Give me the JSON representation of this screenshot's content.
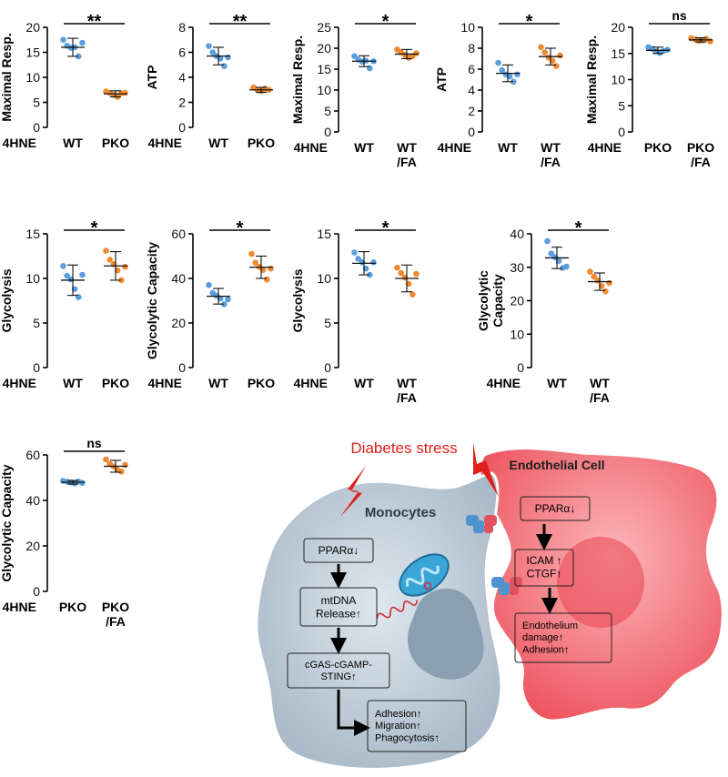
{
  "chart_data": [
    {
      "type": "scatter",
      "ylabel": "Maximal Resp.",
      "row_label": "4HNE",
      "categories": [
        "WT",
        "PKO"
      ],
      "ylim": [
        0,
        20
      ],
      "yticks": [
        0,
        5,
        10,
        15,
        20
      ],
      "significance": "**",
      "series": [
        {
          "color": "#5a9fdc",
          "mean": 16.0,
          "sd": 1.8,
          "values": [
            17.5,
            16.3,
            15.9,
            16.0,
            14.2,
            16.9
          ]
        },
        {
          "color": "#ee8a32",
          "mean": 6.7,
          "sd": 0.6,
          "values": [
            7.2,
            6.9,
            6.5,
            6.1,
            6.8,
            6.9
          ]
        }
      ]
    },
    {
      "type": "scatter",
      "ylabel": "ATP",
      "row_label": "4HNE",
      "categories": [
        "WT",
        "PKO"
      ],
      "ylim": [
        0,
        8
      ],
      "yticks": [
        0,
        2,
        4,
        6,
        8
      ],
      "significance": "**",
      "series": [
        {
          "color": "#5a9fdc",
          "mean": 5.7,
          "sd": 0.7,
          "values": [
            6.5,
            6.0,
            5.7,
            5.5,
            4.9,
            5.6
          ]
        },
        {
          "color": "#ee8a32",
          "mean": 3.0,
          "sd": 0.2,
          "values": [
            3.2,
            3.0,
            2.9,
            3.1,
            3.0
          ]
        }
      ]
    },
    {
      "type": "scatter",
      "ylabel": "Maximal Resp.",
      "row_label": "4HNE",
      "categories": [
        "WT",
        "WT\n/FA"
      ],
      "ylim": [
        0,
        25
      ],
      "yticks": [
        0,
        5,
        10,
        15,
        20,
        25
      ],
      "significance": "*",
      "series": [
        {
          "color": "#5a9fdc",
          "mean": 16.9,
          "sd": 1.3,
          "values": [
            18.1,
            17.3,
            16.8,
            17.0,
            15.2,
            16.9
          ]
        },
        {
          "color": "#ee8a32",
          "mean": 18.6,
          "sd": 1.1,
          "values": [
            19.7,
            19.0,
            18.4,
            17.7,
            18.1,
            18.8
          ]
        }
      ]
    },
    {
      "type": "scatter",
      "ylabel": "ATP",
      "row_label": "4HNE",
      "categories": [
        "WT",
        "WT\n/FA"
      ],
      "ylim": [
        0,
        10
      ],
      "yticks": [
        0,
        2,
        4,
        6,
        8,
        10
      ],
      "significance": "*",
      "series": [
        {
          "color": "#5a9fdc",
          "mean": 5.6,
          "sd": 0.8,
          "values": [
            6.6,
            5.9,
            5.5,
            5.3,
            4.8,
            5.5
          ]
        },
        {
          "color": "#ee8a32",
          "mean": 7.2,
          "sd": 0.8,
          "values": [
            8.1,
            7.6,
            7.1,
            6.8,
            6.3,
            7.3
          ]
        }
      ]
    },
    {
      "type": "scatter",
      "ylabel": "Maximal Resp.",
      "row_label": "4HNE",
      "categories": [
        "PKO",
        "PKO\n/FA"
      ],
      "ylim": [
        0,
        20
      ],
      "yticks": [
        0,
        5,
        10,
        15,
        20
      ],
      "significance": "ns",
      "series": [
        {
          "color": "#5a9fdc",
          "mean": 15.6,
          "sd": 0.6,
          "values": [
            16.2,
            15.9,
            15.4,
            15.1,
            15.5,
            15.7
          ]
        },
        {
          "color": "#ee8a32",
          "mean": 17.6,
          "sd": 0.4,
          "values": [
            17.9,
            17.7,
            17.4,
            17.5,
            17.8,
            17.3
          ]
        }
      ]
    },
    {
      "type": "scatter",
      "ylabel": "Glycolysis",
      "row_label": "4HNE",
      "categories": [
        "WT",
        "PKO"
      ],
      "ylim": [
        0,
        15
      ],
      "yticks": [
        0,
        5,
        10,
        15
      ],
      "significance": "*",
      "series": [
        {
          "color": "#5a9fdc",
          "mean": 9.8,
          "sd": 1.7,
          "values": [
            11.4,
            10.3,
            9.9,
            8.8,
            7.9,
            10.4
          ]
        },
        {
          "color": "#ee8a32",
          "mean": 11.4,
          "sd": 1.6,
          "values": [
            13.1,
            12.1,
            11.6,
            10.9,
            9.8,
            11.3
          ]
        }
      ]
    },
    {
      "type": "scatter",
      "ylabel": "Glycolytic Capacity",
      "row_label": "4HNE",
      "categories": [
        "WT",
        "PKO"
      ],
      "ylim": [
        0,
        60
      ],
      "yticks": [
        0,
        20,
        40,
        60
      ],
      "significance": "*",
      "series": [
        {
          "color": "#5a9fdc",
          "mean": 32.0,
          "sd": 3.5,
          "values": [
            37.0,
            33.5,
            32.2,
            31.0,
            28.4,
            30.6
          ]
        },
        {
          "color": "#ee8a32",
          "mean": 45.0,
          "sd": 5.0,
          "values": [
            51.0,
            47.0,
            45.2,
            43.8,
            39.5,
            44.4
          ]
        }
      ]
    },
    {
      "type": "scatter",
      "ylabel": "Glycolysis",
      "row_label": "4HNE",
      "categories": [
        "WT",
        "WT\n/FA"
      ],
      "ylim": [
        0,
        15
      ],
      "yticks": [
        0,
        5,
        10,
        15
      ],
      "significance": "*",
      "series": [
        {
          "color": "#5a9fdc",
          "mean": 11.7,
          "sd": 1.3,
          "values": [
            12.9,
            12.2,
            11.8,
            11.1,
            10.4,
            11.8
          ]
        },
        {
          "color": "#ee8a32",
          "mean": 10.0,
          "sd": 1.5,
          "values": [
            11.2,
            10.6,
            10.1,
            9.4,
            8.2,
            10.5
          ]
        }
      ]
    },
    {
      "type": "scatter",
      "ylabel": "Glycolytic\nCapacity",
      "row_label": "4HNE",
      "categories": [
        "WT",
        "WT\n/FA"
      ],
      "ylim": [
        0,
        40
      ],
      "yticks": [
        0,
        10,
        20,
        30,
        40
      ],
      "significance": "*",
      "series": [
        {
          "color": "#5a9fdc",
          "mean": 32.8,
          "sd": 3.2,
          "values": [
            37.8,
            34.1,
            33.0,
            31.9,
            29.8,
            30.2
          ]
        },
        {
          "color": "#ee8a32",
          "mean": 25.7,
          "sd": 2.6,
          "values": [
            28.7,
            27.2,
            26.0,
            24.4,
            22.8,
            25.3
          ]
        }
      ]
    },
    {
      "type": "scatter",
      "ylabel": "Glycolytic Capacity",
      "row_label": "4HNE",
      "categories": [
        "PKO",
        "PKO\n/FA"
      ],
      "ylim": [
        0,
        60
      ],
      "yticks": [
        0,
        20,
        40,
        60
      ],
      "significance": "ns",
      "series": [
        {
          "color": "#5a9fdc",
          "mean": 48.0,
          "sd": 0.8,
          "values": [
            48.6,
            48.2,
            47.9,
            47.5,
            48.3,
            47.7
          ]
        },
        {
          "color": "#ee8a32",
          "mean": 55.0,
          "sd": 2.6,
          "values": [
            58.0,
            56.0,
            55.0,
            53.4,
            52.7,
            55.6
          ]
        }
      ]
    }
  ],
  "diagram": {
    "stress_label": "Diabetes stress",
    "endothelial_title": "Endothelial Cell",
    "monocytes_title": "Monocytes",
    "mono_boxes": [
      "PPARα↓",
      "mtDNA\nRelease↑",
      "cGAS-cGAMP-\nSTING↑",
      "Adhesion↑\nMigration↑\nPhagocytosis↑"
    ],
    "endo_boxes": [
      "PPARα↓",
      "ICAM ↑\nCTGF↑",
      "Endothelium\ndamage↑\nAdhesion↑"
    ],
    "colors": {
      "stress": "#e0201c",
      "monocyte": "#b8c6d2",
      "endothelial": "#f2626a",
      "mito": "#3aa6d8"
    }
  }
}
